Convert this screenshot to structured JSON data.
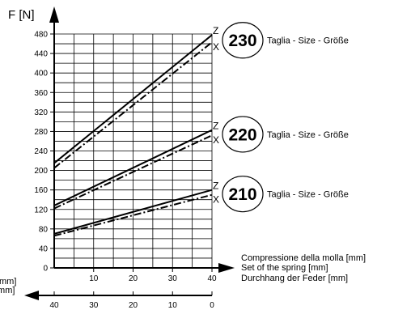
{
  "colors": {
    "ink": "#000000",
    "background": "#ffffff"
  },
  "chart_data": {
    "type": "line",
    "y_axis_title": "F [N]",
    "x_axis_labels": [
      "Compressione della molla [mm]",
      "Set of the spring [mm]",
      "Durchhang der Feder [mm]"
    ],
    "x2_axis_labels_truncated": [
      "mm]",
      "[mm]"
    ],
    "x_ticks": [
      "10",
      "20",
      "30",
      "40"
    ],
    "x2_ticks": [
      "40",
      "30",
      "20",
      "10",
      "0"
    ],
    "y_ticks": [
      "0",
      "40",
      "80",
      "120",
      "160",
      "200",
      "240",
      "280",
      "320",
      "360",
      "400",
      "440",
      "480"
    ],
    "xlim": [
      0,
      40
    ],
    "ylim": [
      0,
      480
    ],
    "grid": true,
    "sizes": [
      {
        "number": "230",
        "caption": "Taglia - Size - Größe",
        "label_upper": "Z",
        "label_lower": "X",
        "series": [
          {
            "name": "Z",
            "style": "solid",
            "x": [
              0,
              40
            ],
            "y": [
              215,
              478
            ]
          },
          {
            "name": "X",
            "style": "dash-dot",
            "x": [
              0,
              40
            ],
            "y": [
              205,
              463
            ]
          }
        ]
      },
      {
        "number": "220",
        "caption": "Taglia - Size - Größe",
        "label_upper": "Z",
        "label_lower": "X",
        "series": [
          {
            "name": "Z",
            "style": "solid",
            "x": [
              0,
              40
            ],
            "y": [
              128,
              283
            ]
          },
          {
            "name": "X",
            "style": "dash-dot",
            "x": [
              0,
              40
            ],
            "y": [
              122,
              272
            ]
          }
        ]
      },
      {
        "number": "210",
        "caption": "Taglia - Size - Größe",
        "label_upper": "Z",
        "label_lower": "X",
        "series": [
          {
            "name": "Z",
            "style": "solid",
            "x": [
              0,
              40
            ],
            "y": [
              70,
              160
            ]
          },
          {
            "name": "X",
            "style": "dash-dot",
            "x": [
              0,
              40
            ],
            "y": [
              66,
              150
            ]
          }
        ]
      }
    ]
  }
}
